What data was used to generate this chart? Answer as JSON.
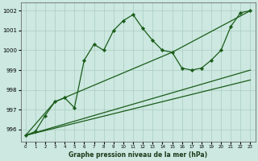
{
  "title": "Graphe pression niveau de la mer (hPa)",
  "bg_color": "#cce8e0",
  "grid_color": "#aaccc0",
  "line_color": "#1a5c1a",
  "x_values": [
    0,
    1,
    2,
    3,
    4,
    5,
    6,
    7,
    8,
    9,
    10,
    11,
    12,
    13,
    14,
    15,
    16,
    17,
    18,
    19,
    20,
    21,
    22,
    23
  ],
  "main_series": [
    995.7,
    995.9,
    996.7,
    997.4,
    997.6,
    997.1,
    999.5,
    1000.3,
    1000.0,
    1001.0,
    1001.5,
    1001.8,
    1001.1,
    1000.5,
    1000.0,
    999.9,
    999.1,
    999.0,
    999.1,
    999.5,
    1000.0,
    1001.2,
    1001.9,
    1002.0
  ],
  "line2_pts": [
    [
      0,
      995.7
    ],
    [
      3,
      997.4
    ],
    [
      15,
      999.9
    ],
    [
      23,
      1002.0
    ]
  ],
  "line3_pts": [
    [
      0,
      995.7
    ],
    [
      23,
      999.0
    ]
  ],
  "line4_pts": [
    [
      0,
      995.7
    ],
    [
      23,
      998.5
    ]
  ],
  "ylim": [
    995.4,
    1002.4
  ],
  "yticks": [
    996,
    997,
    998,
    999,
    1000,
    1001,
    1002
  ],
  "xlim": [
    -0.5,
    23.5
  ],
  "xtick_labels": [
    "0",
    "1",
    "2",
    "3",
    "4",
    "5",
    "6",
    "7",
    "8",
    "9",
    "10",
    "11",
    "12",
    "13",
    "14",
    "15",
    "16",
    "17",
    "18",
    "19",
    "20",
    "21",
    "22",
    "23"
  ]
}
